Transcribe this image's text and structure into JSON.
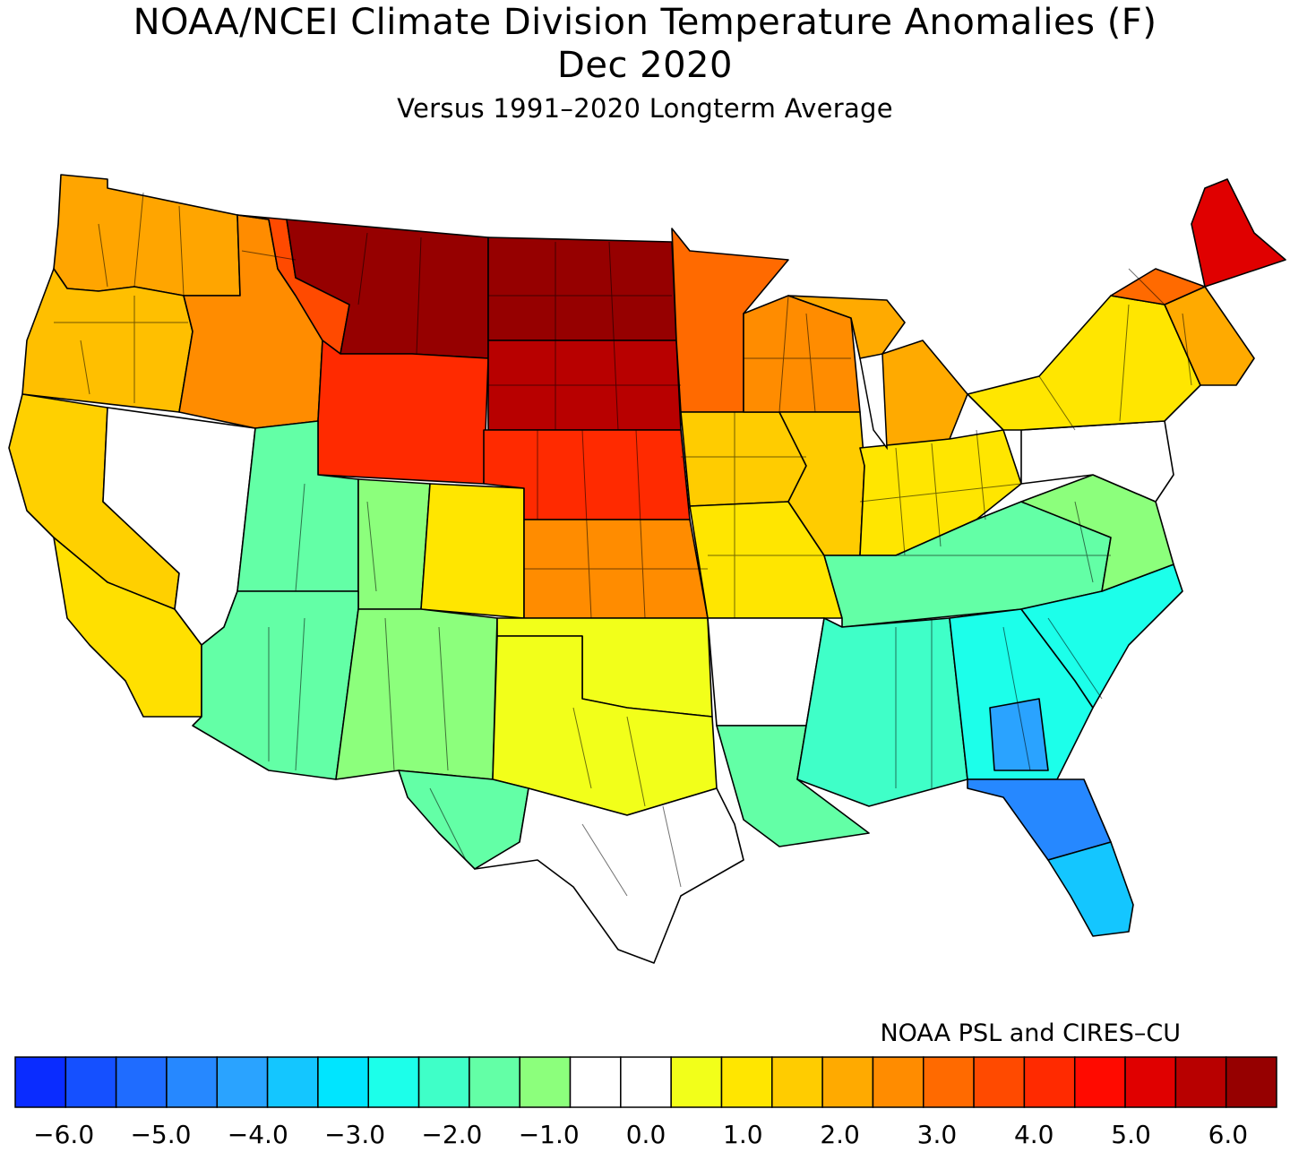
{
  "header": {
    "title": "NOAA/NCEI Climate Division Temperature Anomalies (F)",
    "period": "Dec 2020",
    "subtitle": "Versus 1991–2020 Longterm Average"
  },
  "credit": "NOAA PSL and CIRES–CU",
  "legend": {
    "unit": "F",
    "step": 0.5,
    "min": -6.5,
    "max": 6.5,
    "colors": [
      "#0a2cff",
      "#1550ff",
      "#1f6cff",
      "#2688ff",
      "#2aa3ff",
      "#14c6ff",
      "#00e5ff",
      "#1cffea",
      "#3fffc8",
      "#63ffa6",
      "#8cff7c",
      "#ffffff",
      "#ffffff",
      "#f2ff1a",
      "#ffe600",
      "#ffcc00",
      "#ffaa00",
      "#ff8c00",
      "#ff6a00",
      "#ff4a00",
      "#ff2a00",
      "#ff0a00",
      "#e00000",
      "#b80000",
      "#960000"
    ],
    "tick_labels": [
      "−6.0",
      "−5.0",
      "−4.0",
      "−3.0",
      "−2.0",
      "−1.0",
      "0.0",
      "1.0",
      "2.0",
      "3.0",
      "4.0",
      "5.0",
      "6.0"
    ],
    "tick_values": [
      -6,
      -5,
      -4,
      -3,
      -2,
      -1,
      0,
      1,
      2,
      3,
      4,
      5,
      6
    ]
  },
  "map_regions": [
    {
      "name": "washington",
      "color": "#ffa500"
    },
    {
      "name": "oregon",
      "color": "#ffbf00"
    },
    {
      "name": "california-north",
      "color": "#ffd000"
    },
    {
      "name": "california-south",
      "color": "#ffe000"
    },
    {
      "name": "nevada",
      "color": "#ffffff"
    },
    {
      "name": "idaho",
      "color": "#ff8c00"
    },
    {
      "name": "montana-west",
      "color": "#ff4a00"
    },
    {
      "name": "montana-east",
      "color": "#960000"
    },
    {
      "name": "wyoming",
      "color": "#ff2a00"
    },
    {
      "name": "utah",
      "color": "#63ffa6"
    },
    {
      "name": "colorado-west",
      "color": "#8cff7c"
    },
    {
      "name": "colorado-east",
      "color": "#ffe600"
    },
    {
      "name": "arizona",
      "color": "#63ffa6"
    },
    {
      "name": "new-mexico",
      "color": "#8cff7c"
    },
    {
      "name": "north-dakota",
      "color": "#960000"
    },
    {
      "name": "south-dakota",
      "color": "#b80000"
    },
    {
      "name": "nebraska",
      "color": "#ff2a00"
    },
    {
      "name": "kansas",
      "color": "#ff8c00"
    },
    {
      "name": "oklahoma",
      "color": "#f2ff1a"
    },
    {
      "name": "texas-west",
      "color": "#63ffa6"
    },
    {
      "name": "texas-central",
      "color": "#ffffff"
    },
    {
      "name": "texas-north",
      "color": "#f2ff1a"
    },
    {
      "name": "minnesota",
      "color": "#ff6a00"
    },
    {
      "name": "iowa",
      "color": "#ffcc00"
    },
    {
      "name": "missouri",
      "color": "#ffe600"
    },
    {
      "name": "arkansas",
      "color": "#ffffff"
    },
    {
      "name": "louisiana",
      "color": "#63ffa6"
    },
    {
      "name": "wisconsin",
      "color": "#ff8c00"
    },
    {
      "name": "michigan",
      "color": "#ffaa00"
    },
    {
      "name": "illinois",
      "color": "#ffcc00"
    },
    {
      "name": "indiana-ohio",
      "color": "#ffe600"
    },
    {
      "name": "kentucky-tennessee",
      "color": "#63ffa6"
    },
    {
      "name": "mississippi-alabama",
      "color": "#3fffc8"
    },
    {
      "name": "georgia",
      "color": "#1cffea"
    },
    {
      "name": "south-georgia",
      "color": "#2aa3ff"
    },
    {
      "name": "florida",
      "color": "#2688ff"
    },
    {
      "name": "florida-south",
      "color": "#14c6ff"
    },
    {
      "name": "carolinas",
      "color": "#1cffea"
    },
    {
      "name": "virginia",
      "color": "#8cff7c"
    },
    {
      "name": "mid-atlantic",
      "color": "#ffffff"
    },
    {
      "name": "new-york-pa",
      "color": "#ffe600"
    },
    {
      "name": "new-england",
      "color": "#ffaa00"
    },
    {
      "name": "vermont-nh",
      "color": "#ff6a00"
    },
    {
      "name": "maine",
      "color": "#e00000"
    }
  ]
}
